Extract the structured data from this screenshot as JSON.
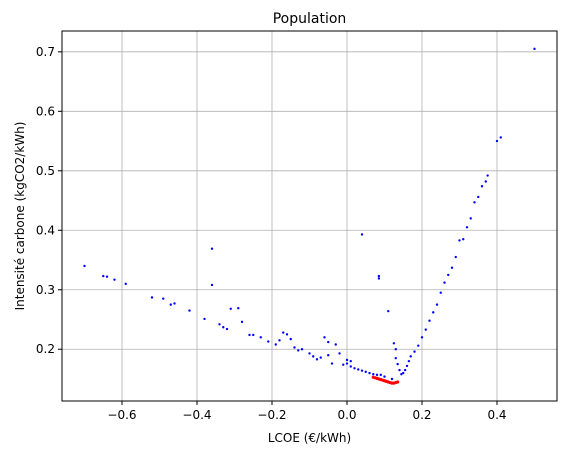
{
  "chart_data": {
    "type": "scatter",
    "title": "Population",
    "xlabel": "LCOE (€/kWh)",
    "ylabel": "Intensité carbone (kgCO2/kWh)",
    "xlim": [
      -0.76,
      0.56
    ],
    "ylim": [
      0.113,
      0.735
    ],
    "xticks": [
      -0.6,
      -0.4,
      -0.2,
      0.0,
      0.2,
      0.4
    ],
    "xtick_labels": [
      "−0.6",
      "−0.4",
      "−0.2",
      "0.0",
      "0.2",
      "0.4"
    ],
    "yticks": [
      0.2,
      0.3,
      0.4,
      0.5,
      0.6,
      0.7
    ],
    "ytick_labels": [
      "0.2",
      "0.3",
      "0.4",
      "0.5",
      "0.6",
      "0.7"
    ],
    "grid": true,
    "series": [
      {
        "color": "#0000ff",
        "points": [
          [
            -0.7,
            0.34
          ],
          [
            -0.65,
            0.323
          ],
          [
            -0.64,
            0.322
          ],
          [
            -0.62,
            0.317
          ],
          [
            -0.59,
            0.31
          ],
          [
            -0.52,
            0.287
          ],
          [
            -0.49,
            0.285
          ],
          [
            -0.47,
            0.275
          ],
          [
            -0.46,
            0.277
          ],
          [
            -0.42,
            0.265
          ],
          [
            -0.38,
            0.251
          ],
          [
            -0.36,
            0.308
          ],
          [
            -0.36,
            0.369
          ],
          [
            -0.34,
            0.242
          ],
          [
            -0.33,
            0.237
          ],
          [
            -0.32,
            0.234
          ],
          [
            -0.31,
            0.268
          ],
          [
            -0.29,
            0.269
          ],
          [
            -0.28,
            0.246
          ],
          [
            -0.26,
            0.224
          ],
          [
            -0.25,
            0.224
          ],
          [
            -0.23,
            0.22
          ],
          [
            -0.21,
            0.213
          ],
          [
            -0.19,
            0.208
          ],
          [
            -0.18,
            0.215
          ],
          [
            -0.17,
            0.228
          ],
          [
            -0.16,
            0.225
          ],
          [
            -0.15,
            0.217
          ],
          [
            -0.14,
            0.203
          ],
          [
            -0.13,
            0.198
          ],
          [
            -0.12,
            0.2
          ],
          [
            -0.1,
            0.193
          ],
          [
            -0.09,
            0.188
          ],
          [
            -0.08,
            0.183
          ],
          [
            -0.07,
            0.186
          ],
          [
            -0.06,
            0.22
          ],
          [
            -0.05,
            0.212
          ],
          [
            -0.05,
            0.19
          ],
          [
            -0.04,
            0.176
          ],
          [
            -0.03,
            0.208
          ],
          [
            -0.02,
            0.193
          ],
          [
            -0.01,
            0.174
          ],
          [
            0.0,
            0.176
          ],
          [
            0.0,
            0.182
          ],
          [
            0.01,
            0.171
          ],
          [
            0.01,
            0.18
          ],
          [
            0.02,
            0.168
          ],
          [
            0.03,
            0.166
          ],
          [
            0.04,
            0.164
          ],
          [
            0.04,
            0.393
          ],
          [
            0.05,
            0.162
          ],
          [
            0.06,
            0.16
          ],
          [
            0.07,
            0.158
          ],
          [
            0.08,
            0.157
          ],
          [
            0.085,
            0.323
          ],
          [
            0.085,
            0.319
          ],
          [
            0.09,
            0.157
          ],
          [
            0.1,
            0.154
          ],
          [
            0.11,
            0.264
          ],
          [
            0.12,
            0.15
          ],
          [
            0.125,
            0.21
          ],
          [
            0.13,
            0.2
          ],
          [
            0.13,
            0.185
          ],
          [
            0.135,
            0.175
          ],
          [
            0.14,
            0.165
          ],
          [
            0.145,
            0.158
          ],
          [
            0.15,
            0.16
          ],
          [
            0.155,
            0.165
          ],
          [
            0.16,
            0.172
          ],
          [
            0.165,
            0.18
          ],
          [
            0.17,
            0.188
          ],
          [
            0.18,
            0.196
          ],
          [
            0.19,
            0.206
          ],
          [
            0.2,
            0.22
          ],
          [
            0.21,
            0.233
          ],
          [
            0.22,
            0.248
          ],
          [
            0.23,
            0.262
          ],
          [
            0.24,
            0.275
          ],
          [
            0.25,
            0.295
          ],
          [
            0.26,
            0.312
          ],
          [
            0.27,
            0.325
          ],
          [
            0.28,
            0.337
          ],
          [
            0.29,
            0.355
          ],
          [
            0.3,
            0.383
          ],
          [
            0.31,
            0.385
          ],
          [
            0.32,
            0.405
          ],
          [
            0.33,
            0.42
          ],
          [
            0.34,
            0.447
          ],
          [
            0.35,
            0.456
          ],
          [
            0.36,
            0.474
          ],
          [
            0.37,
            0.482
          ],
          [
            0.375,
            0.492
          ],
          [
            0.4,
            0.55
          ],
          [
            0.41,
            0.556
          ],
          [
            0.5,
            0.705
          ]
        ]
      },
      {
        "color": "#ff0000",
        "points": [
          [
            0.07,
            0.153
          ],
          [
            0.075,
            0.152
          ],
          [
            0.08,
            0.151
          ],
          [
            0.085,
            0.15
          ],
          [
            0.09,
            0.149
          ],
          [
            0.095,
            0.148
          ],
          [
            0.1,
            0.147
          ],
          [
            0.105,
            0.146
          ],
          [
            0.11,
            0.145
          ],
          [
            0.115,
            0.144
          ],
          [
            0.12,
            0.143
          ],
          [
            0.125,
            0.143
          ],
          [
            0.13,
            0.144
          ],
          [
            0.135,
            0.145
          ]
        ]
      }
    ]
  }
}
